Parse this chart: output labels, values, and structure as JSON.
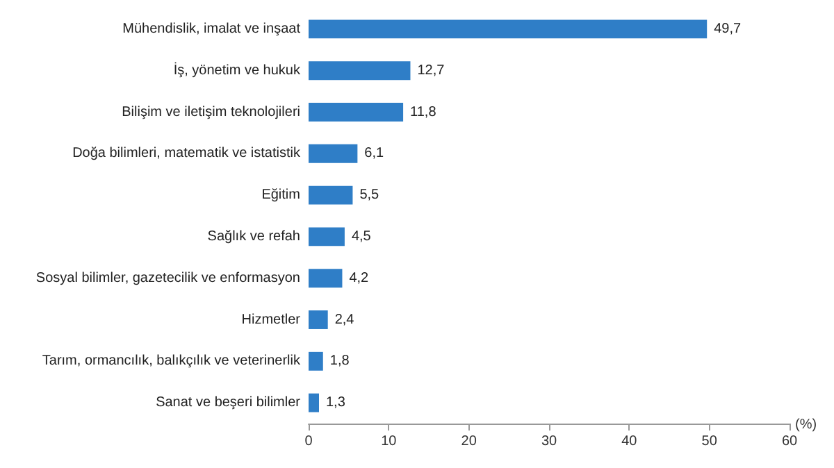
{
  "chart_data": {
    "type": "bar",
    "orientation": "horizontal",
    "xlabel": "(%)",
    "categories": [
      "Mühendislik, imalat ve inşaat",
      "İş, yönetim ve hukuk",
      "Bilişim ve iletişim teknolojileri",
      "Doğa bilimleri, matematik ve istatistik",
      "Eğitim",
      "Sağlık ve refah",
      "Sosyal bilimler, gazetecilik ve enformasyon",
      "Hizmetler",
      "Tarım, ormancılık, balıkçılık ve veterinerlik",
      "Sanat ve beşeri bilimler"
    ],
    "values": [
      49.7,
      12.7,
      11.8,
      6.1,
      5.5,
      4.5,
      4.2,
      2.4,
      1.8,
      1.3
    ],
    "value_labels": [
      "49,7",
      "12,7",
      "11,8",
      "6,1",
      "5,5",
      "4,5",
      "4,2",
      "2,4",
      "1,8",
      "1,3"
    ],
    "color": "#2f7ec7",
    "xlim": [
      0,
      60
    ],
    "xticks": [
      0,
      10,
      20,
      30,
      40,
      50,
      60
    ],
    "grid": false
  }
}
